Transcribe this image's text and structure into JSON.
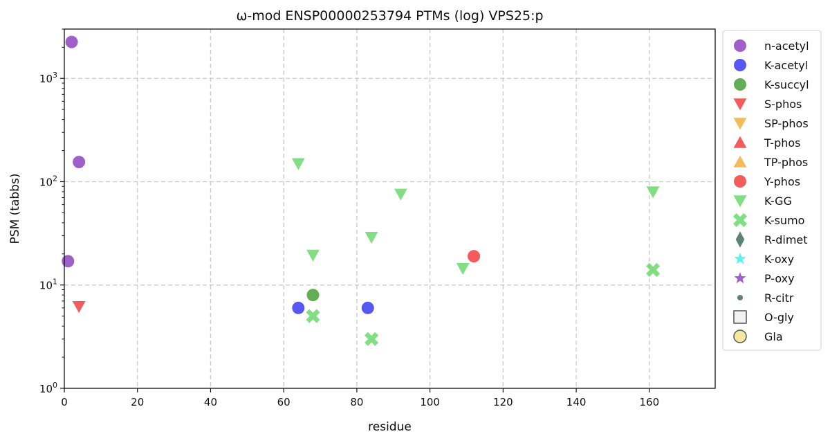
{
  "chart_data": {
    "type": "scatter",
    "title": "ω-mod ENSP00000253794 PTMs (log) VPS25:p",
    "xlabel": "residue",
    "ylabel": "PSM (tabbs)",
    "xlim": [
      0,
      178
    ],
    "ylim": [
      1,
      3000
    ],
    "yscale": "log",
    "grid": true,
    "legend_position": "outside-right",
    "x_ticks": [
      "0",
      "20",
      "40",
      "60",
      "80",
      "100",
      "120",
      "140",
      "160"
    ],
    "y_ticks": [
      {
        "base": "10",
        "exp": "0",
        "value": 1
      },
      {
        "base": "10",
        "exp": "1",
        "value": 10
      },
      {
        "base": "10",
        "exp": "2",
        "value": 100
      },
      {
        "base": "10",
        "exp": "3",
        "value": 1000
      }
    ],
    "series": [
      {
        "name": "n-acetyl",
        "marker": "circle",
        "color": "#8e44c0",
        "points": [
          [
            2,
            2250
          ],
          [
            4,
            155
          ],
          [
            1,
            17
          ]
        ]
      },
      {
        "name": "K-acetyl",
        "marker": "circle",
        "color": "#3a3af0",
        "points": [
          [
            64,
            6
          ],
          [
            83,
            6
          ]
        ]
      },
      {
        "name": "K-succyl",
        "marker": "circle",
        "color": "#4a9e3a",
        "points": [
          [
            68,
            8
          ]
        ]
      },
      {
        "name": "S-phos",
        "marker": "triangle-down",
        "color": "#f04040",
        "points": [
          [
            4,
            6.2
          ]
        ]
      },
      {
        "name": "SP-phos",
        "marker": "triangle-down",
        "color": "#f0b040",
        "points": []
      },
      {
        "name": "T-phos",
        "marker": "triangle-up",
        "color": "#f04040",
        "points": []
      },
      {
        "name": "TP-phos",
        "marker": "triangle-up",
        "color": "#f0b040",
        "points": []
      },
      {
        "name": "Y-phos",
        "marker": "circle",
        "color": "#f04040",
        "points": [
          [
            112,
            19
          ]
        ]
      },
      {
        "name": "K-GG",
        "marker": "triangle-down",
        "color": "#6cd86c",
        "points": [
          [
            64,
            150
          ],
          [
            68,
            19.5
          ],
          [
            84,
            29
          ],
          [
            92,
            76
          ],
          [
            109,
            14.5
          ],
          [
            161,
            80
          ]
        ]
      },
      {
        "name": "K-sumo",
        "marker": "x",
        "color": "#6cd86c",
        "points": [
          [
            68,
            5
          ],
          [
            84,
            3
          ],
          [
            161,
            14
          ]
        ]
      },
      {
        "name": "R-dimet",
        "marker": "diamond",
        "color": "#3f6e5a",
        "points": []
      },
      {
        "name": "K-oxy",
        "marker": "star",
        "color": "#40f0f0",
        "points": []
      },
      {
        "name": "P-oxy",
        "marker": "star",
        "color": "#8e44c0",
        "points": []
      },
      {
        "name": "R-citr",
        "marker": "small-circle",
        "color": "#3f6e5a",
        "points": []
      },
      {
        "name": "O-gly",
        "marker": "square-open",
        "color": "#555555",
        "points": []
      },
      {
        "name": "Gla",
        "marker": "circle-open",
        "color": "#f5e6a0",
        "points": []
      }
    ]
  }
}
